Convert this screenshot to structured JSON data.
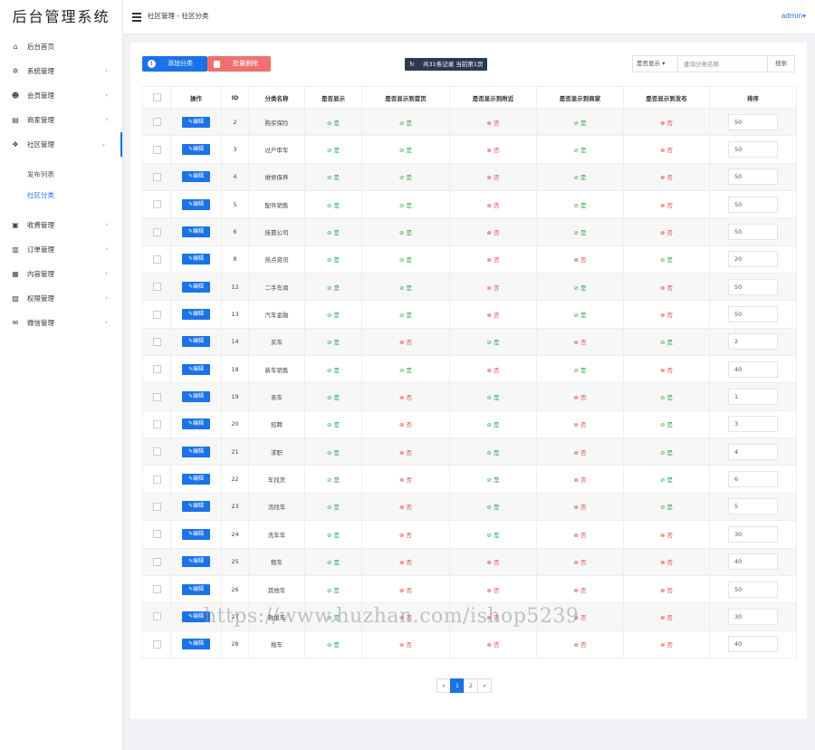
{
  "app": {
    "title": "后台管理系统"
  },
  "sidebar": {
    "items": [
      {
        "label": "后台首页",
        "icon": "home-icon",
        "glyph": "⌂",
        "has_children": false
      },
      {
        "label": "系统管理",
        "icon": "gear-icon",
        "glyph": "✲",
        "has_children": true
      },
      {
        "label": "会员管理",
        "icon": "users-icon",
        "glyph": "☻",
        "has_children": true
      },
      {
        "label": "商家管理",
        "icon": "store-icon",
        "glyph": "▤",
        "has_children": true
      },
      {
        "label": "社区管理",
        "icon": "community-icon",
        "glyph": "❖",
        "has_children": true,
        "expanded": true
      },
      {
        "label": "收费管理",
        "icon": "wallet-icon",
        "glyph": "▣",
        "has_children": true
      },
      {
        "label": "订单管理",
        "icon": "clipboard-icon",
        "glyph": "▥",
        "has_children": true
      },
      {
        "label": "内容管理",
        "icon": "document-icon",
        "glyph": "▦",
        "has_children": true
      },
      {
        "label": "权限管理",
        "icon": "permission-icon",
        "glyph": "▧",
        "has_children": true
      },
      {
        "label": "微信管理",
        "icon": "wechat-icon",
        "glyph": "✉",
        "has_children": true
      }
    ],
    "subitems": [
      {
        "label": "发布列表"
      },
      {
        "label": "社区分类"
      }
    ]
  },
  "header": {
    "breadcrumb": "社区管理 - 社区分类",
    "user": "admin"
  },
  "toolbar": {
    "add_label": "添加分类",
    "delete_label": "批量删除",
    "stat": "共31条记录 当前第1页",
    "filter_value": "是否显示",
    "search_placeholder": "查询分类名称",
    "search_label": "搜索"
  },
  "table": {
    "headers": [
      "",
      "操作",
      "ID",
      "分类名称",
      "是否显示",
      "是否显示到首页",
      "是否显示到附近",
      "是否显示到商家",
      "是否显示到发布",
      "排序"
    ],
    "edit_label": "✎编辑",
    "yes_label": "⊘ 是",
    "no_label": "⊗ 否",
    "rows": [
      {
        "id": "2",
        "name": "购买保险",
        "show": true,
        "home": true,
        "nearby": false,
        "merchant": true,
        "publish": false,
        "sort": "50"
      },
      {
        "id": "3",
        "name": "过户审车",
        "show": true,
        "home": true,
        "nearby": false,
        "merchant": true,
        "publish": false,
        "sort": "50"
      },
      {
        "id": "4",
        "name": "维修保养",
        "show": true,
        "home": true,
        "nearby": false,
        "merchant": true,
        "publish": false,
        "sort": "50"
      },
      {
        "id": "5",
        "name": "配件销售",
        "show": true,
        "home": true,
        "nearby": false,
        "merchant": true,
        "publish": false,
        "sort": "50"
      },
      {
        "id": "6",
        "name": "挂靠公司",
        "show": true,
        "home": true,
        "nearby": false,
        "merchant": true,
        "publish": false,
        "sort": "50"
      },
      {
        "id": "8",
        "name": "热点资讯",
        "show": true,
        "home": true,
        "nearby": false,
        "merchant": false,
        "publish": true,
        "sort": "20"
      },
      {
        "id": "12",
        "name": "二手车商",
        "show": true,
        "home": true,
        "nearby": false,
        "merchant": true,
        "publish": false,
        "sort": "50"
      },
      {
        "id": "13",
        "name": "汽车金融",
        "show": true,
        "home": true,
        "nearby": false,
        "merchant": true,
        "publish": false,
        "sort": "50"
      },
      {
        "id": "14",
        "name": "买车",
        "show": true,
        "home": false,
        "nearby": true,
        "merchant": false,
        "publish": true,
        "sort": "2"
      },
      {
        "id": "18",
        "name": "新车销售",
        "show": true,
        "home": true,
        "nearby": false,
        "merchant": true,
        "publish": false,
        "sort": "40"
      },
      {
        "id": "19",
        "name": "卖车",
        "show": true,
        "home": false,
        "nearby": true,
        "merchant": false,
        "publish": true,
        "sort": "1"
      },
      {
        "id": "20",
        "name": "招聘",
        "show": true,
        "home": false,
        "nearby": true,
        "merchant": false,
        "publish": true,
        "sort": "3"
      },
      {
        "id": "21",
        "name": "求职",
        "show": true,
        "home": false,
        "nearby": true,
        "merchant": false,
        "publish": true,
        "sort": "4"
      },
      {
        "id": "22",
        "name": "车找货",
        "show": true,
        "home": false,
        "nearby": true,
        "merchant": false,
        "publish": true,
        "sort": "6"
      },
      {
        "id": "23",
        "name": "活找车",
        "show": true,
        "home": false,
        "nearby": true,
        "merchant": false,
        "publish": true,
        "sort": "5"
      },
      {
        "id": "24",
        "name": "洗车车",
        "show": true,
        "home": false,
        "nearby": true,
        "merchant": false,
        "publish": false,
        "sort": "30"
      },
      {
        "id": "25",
        "name": "租车",
        "show": true,
        "home": false,
        "nearby": false,
        "merchant": false,
        "publish": false,
        "sort": "40"
      },
      {
        "id": "26",
        "name": "其他车",
        "show": true,
        "home": false,
        "nearby": false,
        "merchant": false,
        "publish": false,
        "sort": "50"
      },
      {
        "id": "27",
        "name": "救援车",
        "show": true,
        "home": false,
        "nearby": false,
        "merchant": false,
        "publish": false,
        "sort": "30"
      },
      {
        "id": "28",
        "name": "拖车",
        "show": true,
        "home": false,
        "nearby": false,
        "merchant": false,
        "publish": false,
        "sort": "40"
      }
    ]
  },
  "pagination": {
    "prev": "«",
    "pages": [
      "1",
      "2"
    ],
    "current": "1",
    "next": "»"
  },
  "watermark": "https://www.huzhan.com/ishop5239",
  "colors": {
    "accent": "#1a73e8",
    "danger": "#f0706f",
    "yes": "#2aa84a",
    "no": "#e24a4a",
    "stat_bg": "#2b3a4f"
  }
}
